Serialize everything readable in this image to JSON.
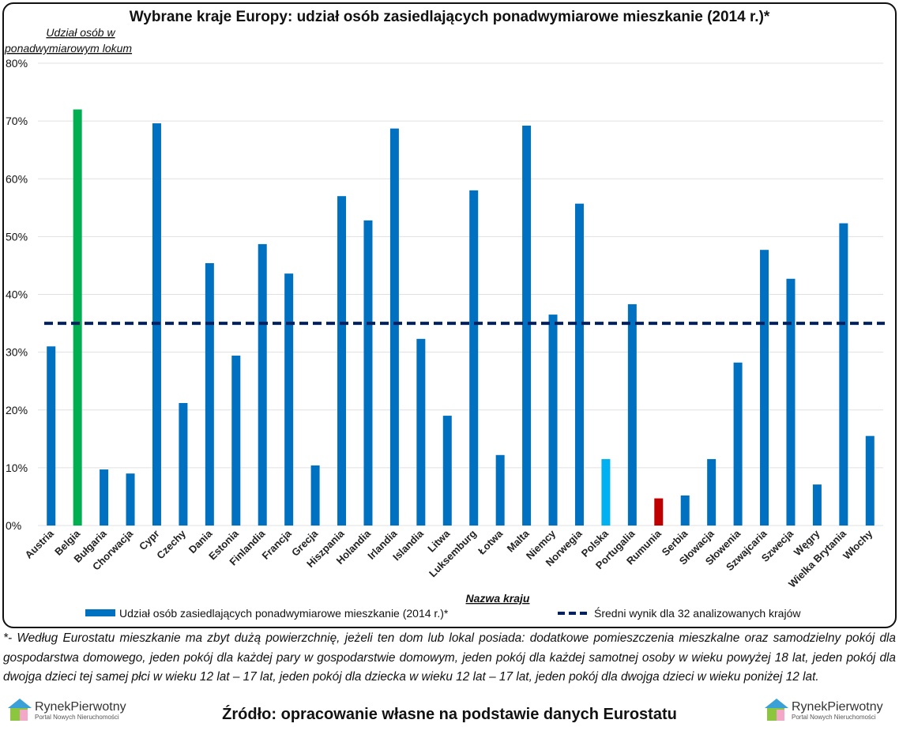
{
  "chart_data": {
    "type": "bar",
    "title": "Wybrane kraje Europy: udział osób zasiedlających ponadwymiarowe mieszkanie (2014 r.)*",
    "ylabel_line1": "Udział osób w",
    "ylabel_line2": "ponadwymiarowym lokum",
    "xlabel": "Nazwa kraju",
    "ylim": [
      0,
      80
    ],
    "yticks": [
      "0%",
      "10%",
      "20%",
      "30%",
      "40%",
      "50%",
      "60%",
      "70%",
      "80%"
    ],
    "grid": true,
    "categories": [
      "Austria",
      "Belgia",
      "Bułgaria",
      "Chorwacja",
      "Cypr",
      "Czechy",
      "Dania",
      "Estonia",
      "Finlandia",
      "Francja",
      "Grecja",
      "Hiszpania",
      "Holandia",
      "Irlandia",
      "Islandia",
      "Litwa",
      "Luksemburg",
      "Łotwa",
      "Malta",
      "Niemcy",
      "Norwegia",
      "Polska",
      "Portugalia",
      "Rumunia",
      "Serbia",
      "Słowacja",
      "Słowenia",
      "Szwajcaria",
      "Szwecja",
      "Węgry",
      "Wielka Brytania",
      "Włochy"
    ],
    "values": [
      31.0,
      72.0,
      9.7,
      9.0,
      69.6,
      21.2,
      45.4,
      29.4,
      48.7,
      43.6,
      10.4,
      57.0,
      52.8,
      68.7,
      32.3,
      19.0,
      58.0,
      12.2,
      69.2,
      36.5,
      55.7,
      11.5,
      38.3,
      4.7,
      5.2,
      11.5,
      28.2,
      47.7,
      42.7,
      7.1,
      52.3,
      15.5
    ],
    "bar_colors": {
      "default": "#0070C0",
      "Belgia": "#00B050",
      "Polska": "#00B0F0",
      "Rumunia": "#C00000"
    },
    "average": 35,
    "average_color": "#002060",
    "legend": [
      "Udział osób zasiedlających ponadwymiarowe mieszkanie (2014 r.)*",
      "Średni wynik dla 32 analizowanych krajów"
    ],
    "legend_position": "bottom"
  },
  "footnote": "*- Według Eurostatu mieszkanie ma zbyt dużą powierzchnię, jeżeli ten dom lub lokal posiada: dodatkowe pomieszczenia mieszkalne oraz samodzielny pokój dla gospodarstwa domowego, jeden pokój dla każdej pary w gospodarstwie domowym, jeden pokój dla każdej samotnej osoby w wieku powyżej 18 lat, jeden pokój dla dwojga dzieci tej samej płci w wieku 12 lat – 17 lat, jeden pokój dla dziecka w wieku 12 lat – 17 lat, jeden pokój dla dwojga dzieci w wieku poniżej 12 lat.",
  "source": "Źródło: opracowanie własne na podstawie danych Eurostatu",
  "logo": {
    "name": "RynekPierwotny",
    "tagline": "Portal Nowych Nieruchomości"
  }
}
